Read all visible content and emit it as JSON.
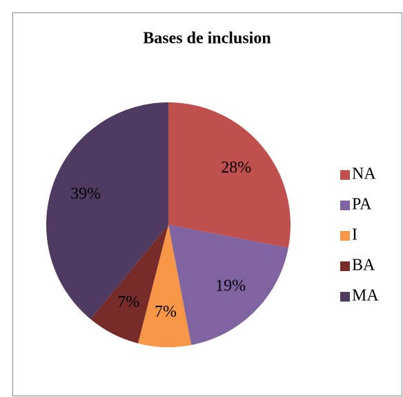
{
  "chart_data": {
    "type": "pie",
    "title": "Bases de inclusion",
    "categories": [
      "NA",
      "PA",
      "I",
      "BA",
      "MA"
    ],
    "values": [
      28,
      19,
      7,
      7,
      39
    ],
    "value_labels": [
      "28%",
      "19%",
      "7%",
      "7%",
      "39%"
    ],
    "colors": [
      "#c0504d",
      "#8064a2",
      "#f79646",
      "#772c2a",
      "#4f3b62"
    ],
    "legend": "right"
  }
}
